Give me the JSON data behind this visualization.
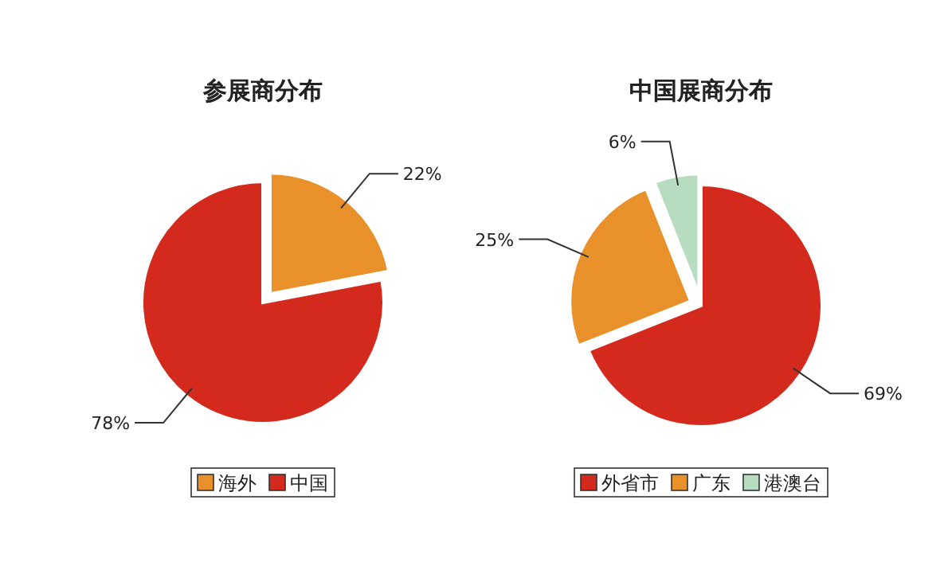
{
  "chart_data": [
    {
      "type": "pie",
      "title": "参展商分布",
      "categories": [
        "海外",
        "中国"
      ],
      "values": [
        22,
        78
      ],
      "value_labels": [
        "22%",
        "78%"
      ],
      "colors": [
        "#e8902a",
        "#d42a1e"
      ],
      "legend": "bottom"
    },
    {
      "type": "pie",
      "title": "中国展商分布",
      "categories": [
        "外省市",
        "广东",
        "港澳台"
      ],
      "values": [
        69,
        25,
        6
      ],
      "value_labels": [
        "69%",
        "25%",
        "6%"
      ],
      "colors": [
        "#d42a1e",
        "#e8902a",
        "#b8dcc0"
      ],
      "legend": "bottom"
    }
  ]
}
